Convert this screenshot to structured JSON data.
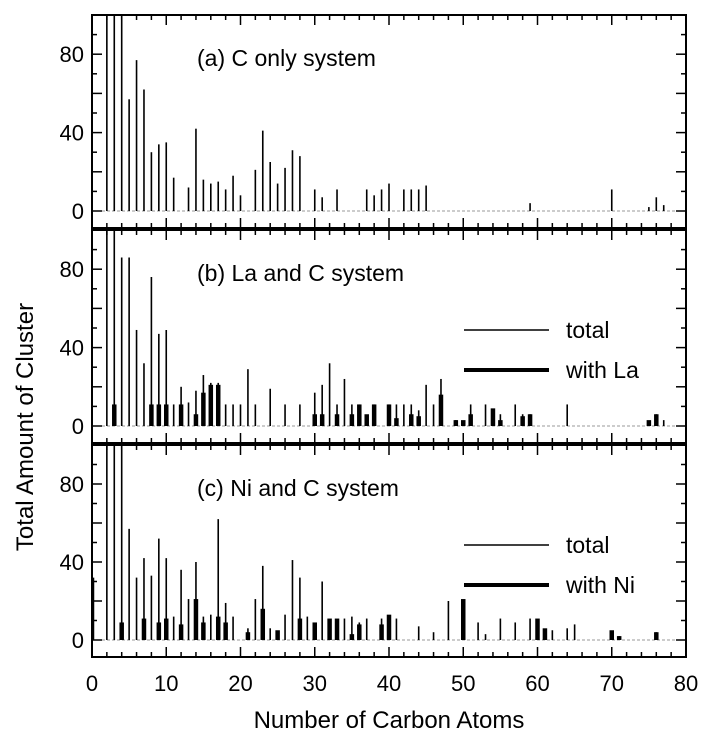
{
  "chart_data": {
    "type": "bar",
    "xlabel": "Number of Carbon Atoms",
    "ylabel": "Total Amount of Cluster",
    "xlim": [
      0,
      80
    ],
    "ylim": [
      0,
      100
    ],
    "x_ticks": [
      "0",
      "10",
      "20",
      "30",
      "40",
      "50",
      "60",
      "70",
      "80"
    ],
    "y_ticks": [
      "0",
      "40",
      "80"
    ],
    "legend_placement": "right",
    "panels": [
      {
        "title": "(a) C only system",
        "series": [
          {
            "role": "total",
            "points": [
              [
                2,
                100
              ],
              [
                3,
                100
              ],
              [
                4,
                100
              ],
              [
                5,
                57
              ],
              [
                6,
                77
              ],
              [
                7,
                62
              ],
              [
                8,
                30
              ],
              [
                9,
                34
              ],
              [
                10,
                35
              ],
              [
                11,
                17
              ],
              [
                13,
                12
              ],
              [
                14,
                42
              ],
              [
                15,
                16
              ],
              [
                16,
                14
              ],
              [
                17,
                15
              ],
              [
                18,
                11
              ],
              [
                19,
                18
              ],
              [
                20,
                8
              ],
              [
                22,
                21
              ],
              [
                23,
                41
              ],
              [
                24,
                25
              ],
              [
                25,
                14
              ],
              [
                26,
                22
              ],
              [
                27,
                31
              ],
              [
                28,
                28
              ],
              [
                30,
                11
              ],
              [
                31,
                7
              ],
              [
                33,
                11
              ],
              [
                37,
                11
              ],
              [
                38,
                8
              ],
              [
                39,
                11
              ],
              [
                40,
                14
              ],
              [
                42,
                11
              ],
              [
                43,
                11
              ],
              [
                44,
                11
              ],
              [
                45,
                13
              ],
              [
                59,
                4
              ],
              [
                70,
                11
              ],
              [
                75,
                2
              ],
              [
                76,
                7
              ],
              [
                77,
                3
              ]
            ]
          }
        ]
      },
      {
        "title": "(b) La and C system",
        "legend": [
          "total",
          "with La"
        ],
        "series": [
          {
            "role": "total",
            "name": "total",
            "points": [
              [
                2,
                100
              ],
              [
                3,
                100
              ],
              [
                4,
                86
              ],
              [
                5,
                86
              ],
              [
                6,
                49
              ],
              [
                7,
                32
              ],
              [
                8,
                76
              ],
              [
                9,
                47
              ],
              [
                10,
                49
              ],
              [
                11,
                11
              ],
              [
                12,
                20
              ],
              [
                13,
                12
              ],
              [
                14,
                18
              ],
              [
                15,
                26
              ],
              [
                16,
                22
              ],
              [
                17,
                22
              ],
              [
                18,
                11
              ],
              [
                19,
                11
              ],
              [
                20,
                11
              ],
              [
                21,
                29
              ],
              [
                22,
                11
              ],
              [
                24,
                19
              ],
              [
                26,
                11
              ],
              [
                28,
                11
              ],
              [
                30,
                17
              ],
              [
                31,
                21
              ],
              [
                32,
                32
              ],
              [
                33,
                11
              ],
              [
                34,
                24
              ],
              [
                35,
                11
              ],
              [
                36,
                11
              ],
              [
                38,
                11
              ],
              [
                40,
                11
              ],
              [
                41,
                11
              ],
              [
                42,
                11
              ],
              [
                43,
                11
              ],
              [
                44,
                8
              ],
              [
                45,
                21
              ],
              [
                46,
                11
              ],
              [
                47,
                24
              ],
              [
                49,
                3
              ],
              [
                51,
                11
              ],
              [
                53,
                11
              ],
              [
                55,
                6
              ],
              [
                57,
                11
              ],
              [
                58,
                6
              ],
              [
                59,
                6
              ],
              [
                64,
                11
              ],
              [
                75,
                2
              ],
              [
                76,
                6
              ],
              [
                77,
                3
              ]
            ]
          },
          {
            "role": "subset",
            "name": "with La",
            "points": [
              [
                3,
                11
              ],
              [
                8,
                11
              ],
              [
                9,
                11
              ],
              [
                10,
                11
              ],
              [
                12,
                11
              ],
              [
                14,
                6
              ],
              [
                15,
                17
              ],
              [
                16,
                21
              ],
              [
                17,
                21
              ],
              [
                30,
                6
              ],
              [
                31,
                6
              ],
              [
                33,
                6
              ],
              [
                35,
                6
              ],
              [
                36,
                11
              ],
              [
                37,
                6
              ],
              [
                38,
                11
              ],
              [
                40,
                11
              ],
              [
                41,
                4
              ],
              [
                43,
                6
              ],
              [
                44,
                5
              ],
              [
                47,
                16
              ],
              [
                49,
                3
              ],
              [
                50,
                3
              ],
              [
                51,
                6
              ],
              [
                54,
                9
              ],
              [
                55,
                3
              ],
              [
                58,
                5
              ],
              [
                59,
                6
              ],
              [
                75,
                3
              ],
              [
                76,
                6
              ]
            ]
          }
        ]
      },
      {
        "title": "(c) Ni and C system",
        "legend": [
          "total",
          "with Ni"
        ],
        "series": [
          {
            "role": "total",
            "name": "total",
            "points": [
              [
                2,
                100
              ],
              [
                3,
                100
              ],
              [
                4,
                100
              ],
              [
                5,
                57
              ],
              [
                6,
                32
              ],
              [
                7,
                42
              ],
              [
                8,
                33
              ],
              [
                9,
                52
              ],
              [
                10,
                42
              ],
              [
                11,
                12
              ],
              [
                12,
                36
              ],
              [
                13,
                21
              ],
              [
                14,
                40
              ],
              [
                15,
                12
              ],
              [
                16,
                13
              ],
              [
                17,
                62
              ],
              [
                18,
                19
              ],
              [
                19,
                12
              ],
              [
                21,
                6
              ],
              [
                22,
                21
              ],
              [
                23,
                38
              ],
              [
                24,
                6
              ],
              [
                26,
                13
              ],
              [
                27,
                41
              ],
              [
                28,
                32
              ],
              [
                29,
                12
              ],
              [
                30,
                8
              ],
              [
                31,
                30
              ],
              [
                32,
                5
              ],
              [
                34,
                11
              ],
              [
                35,
                12
              ],
              [
                36,
                9
              ],
              [
                37,
                11
              ],
              [
                39,
                11
              ],
              [
                40,
                12
              ],
              [
                41,
                11
              ],
              [
                44,
                7
              ],
              [
                46,
                4
              ],
              [
                48,
                20
              ],
              [
                50,
                18
              ],
              [
                52,
                9
              ],
              [
                53,
                3
              ],
              [
                55,
                11
              ],
              [
                57,
                9
              ],
              [
                59,
                11
              ],
              [
                60,
                6
              ],
              [
                61,
                4
              ],
              [
                62,
                5
              ],
              [
                64,
                6
              ],
              [
                65,
                8
              ],
              [
                70,
                3
              ],
              [
                71,
                2
              ],
              [
                76,
                4
              ]
            ]
          },
          {
            "role": "subset",
            "name": "with Ni",
            "points": [
              [
                0,
                32
              ],
              [
                4,
                9
              ],
              [
                7,
                11
              ],
              [
                9,
                9
              ],
              [
                10,
                11
              ],
              [
                12,
                8
              ],
              [
                14,
                21
              ],
              [
                15,
                9
              ],
              [
                17,
                12
              ],
              [
                18,
                9
              ],
              [
                21,
                4
              ],
              [
                23,
                16
              ],
              [
                25,
                5
              ],
              [
                28,
                11
              ],
              [
                30,
                9
              ],
              [
                32,
                11
              ],
              [
                33,
                11
              ],
              [
                35,
                3
              ],
              [
                36,
                8
              ],
              [
                39,
                8
              ],
              [
                40,
                13
              ],
              [
                50,
                21
              ],
              [
                60,
                11
              ],
              [
                61,
                6
              ],
              [
                70,
                5
              ],
              [
                71,
                2
              ],
              [
                76,
                4
              ]
            ]
          }
        ]
      }
    ]
  }
}
